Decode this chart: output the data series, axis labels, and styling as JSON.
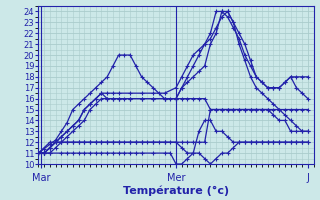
{
  "title": "Température (°c)",
  "background_color": "#cce8e8",
  "grid_color": "#aacccc",
  "line_color": "#2222aa",
  "axis_color": "#2222aa",
  "xlim": [
    0,
    48
  ],
  "ylim": [
    10,
    24.5
  ],
  "yticks": [
    10,
    11,
    12,
    13,
    14,
    15,
    16,
    17,
    18,
    19,
    20,
    21,
    22,
    23,
    24
  ],
  "xtick_positions": [
    0.5,
    24,
    47
  ],
  "xtick_labels": [
    "Mar",
    "Mer",
    "J"
  ],
  "series": [
    {
      "x": [
        0,
        1,
        2,
        3,
        4,
        5,
        6,
        7,
        8,
        9,
        10,
        11,
        12,
        13,
        14,
        15,
        16,
        17,
        18,
        19,
        20,
        21,
        22,
        23,
        24,
        25,
        26,
        27,
        28,
        29,
        30,
        31,
        32,
        33,
        34,
        35,
        36,
        37,
        38,
        39,
        40,
        41,
        42,
        43,
        44,
        45,
        46,
        47
      ],
      "y": [
        11,
        11.4,
        11.8,
        12.2,
        13,
        13.8,
        15,
        15.5,
        16,
        16.5,
        17,
        17.5,
        18,
        19,
        20,
        20,
        20,
        19,
        18,
        17.5,
        17,
        16.5,
        16,
        16,
        16,
        16,
        16,
        16,
        16,
        16,
        15,
        15,
        15,
        15,
        15,
        15,
        15,
        15,
        15,
        15,
        15,
        15,
        15,
        15,
        15,
        15,
        15,
        15
      ]
    },
    {
      "x": [
        0,
        1,
        2,
        3,
        4,
        5,
        6,
        7,
        8,
        9,
        10,
        11,
        12,
        13,
        14,
        15,
        16,
        17,
        18,
        19,
        20,
        21,
        22,
        23,
        24,
        25,
        26,
        27,
        28,
        29,
        30,
        31,
        32,
        33,
        34,
        35,
        36,
        37,
        38,
        39,
        40,
        41,
        42,
        43,
        44,
        45,
        46,
        47
      ],
      "y": [
        11,
        11,
        11.5,
        12,
        12,
        12,
        12,
        12,
        12,
        12,
        12,
        12,
        12,
        12,
        12,
        12,
        12,
        12,
        12,
        12,
        12,
        12,
        12,
        12,
        12,
        11.5,
        11,
        11,
        11,
        10.5,
        10,
        10.5,
        11,
        11,
        11.5,
        12,
        12,
        12,
        12,
        12,
        12,
        12,
        12,
        12,
        12,
        12,
        12,
        12
      ]
    },
    {
      "x": [
        0,
        1,
        2,
        4,
        5,
        6,
        7,
        8,
        9,
        10,
        11,
        12,
        13,
        14,
        15,
        16,
        17,
        18,
        20,
        22,
        23,
        24,
        25,
        26,
        27,
        28,
        29,
        30,
        31,
        32,
        33,
        34,
        35,
        36,
        37,
        38,
        39,
        40,
        41,
        42,
        43,
        44,
        45,
        46,
        47
      ],
      "y": [
        11,
        11,
        11,
        11,
        11,
        11,
        11,
        11,
        11,
        11,
        11,
        11,
        11,
        11,
        11,
        11,
        11,
        11,
        11,
        11,
        11,
        10,
        10,
        10.5,
        11,
        13,
        14,
        14,
        13,
        13,
        12.5,
        12,
        12,
        12,
        12,
        12,
        12,
        12,
        12,
        12,
        12,
        12,
        12,
        12,
        12
      ]
    },
    {
      "x": [
        0,
        2,
        4,
        5,
        6,
        7,
        8,
        9,
        10,
        11,
        12,
        13,
        14,
        16,
        17,
        18,
        20,
        22,
        24,
        25,
        26,
        27,
        28,
        29,
        30,
        31,
        32,
        33,
        34,
        35,
        36,
        37,
        38,
        39,
        40,
        41,
        42,
        43,
        44,
        45,
        46,
        47
      ],
      "y": [
        11,
        12,
        12,
        12,
        12,
        12,
        12,
        12,
        12,
        12,
        12,
        12,
        12,
        12,
        12,
        12,
        12,
        12,
        12,
        12,
        12,
        12,
        12,
        12,
        15,
        15,
        15,
        15,
        15,
        15,
        15,
        15,
        15,
        15,
        15,
        14.5,
        14,
        14,
        13,
        13,
        13,
        13
      ]
    },
    {
      "x": [
        0,
        1,
        2,
        3,
        4,
        5,
        6,
        7,
        8,
        9,
        10,
        11,
        12,
        13,
        14,
        15,
        16,
        18,
        20,
        22,
        24,
        25,
        26,
        27,
        28,
        29,
        30,
        31,
        32,
        33,
        34,
        35,
        36,
        37,
        38,
        39,
        40,
        41,
        42,
        43,
        44,
        45,
        46,
        47
      ],
      "y": [
        11,
        11,
        11.5,
        12,
        12.5,
        13,
        13.5,
        14,
        15,
        15.5,
        16,
        16.5,
        16,
        16,
        16,
        16,
        16,
        16,
        16,
        16,
        16,
        17,
        17.5,
        18,
        18.5,
        19,
        21,
        22,
        24,
        24,
        23,
        22,
        21,
        19.5,
        18,
        17.5,
        17,
        17,
        17,
        17.5,
        18,
        18,
        18,
        18
      ]
    },
    {
      "x": [
        0,
        1,
        2,
        3,
        4,
        5,
        6,
        7,
        8,
        9,
        10,
        11,
        12,
        13,
        14,
        16,
        18,
        20,
        22,
        24,
        25,
        26,
        27,
        28,
        29,
        30,
        31,
        32,
        33,
        34,
        35,
        36,
        37,
        38,
        39,
        40,
        41,
        42,
        43,
        44,
        45,
        46,
        47
      ],
      "y": [
        11,
        11,
        11.5,
        12,
        12.5,
        13,
        13.5,
        14,
        15,
        15.5,
        16,
        16.5,
        16.5,
        16.5,
        16.5,
        16.5,
        16.5,
        16.5,
        16.5,
        17,
        18,
        19,
        20,
        20.5,
        21,
        22,
        24,
        24,
        23.5,
        22.5,
        21.5,
        20,
        19,
        18,
        17.5,
        17,
        17,
        17,
        17.5,
        18,
        17,
        16.5,
        16
      ]
    },
    {
      "x": [
        0,
        1,
        2,
        3,
        4,
        5,
        6,
        7,
        8,
        9,
        10,
        11,
        12,
        13,
        14,
        16,
        18,
        20,
        22,
        24,
        25,
        26,
        27,
        28,
        29,
        30,
        31,
        32,
        33,
        34,
        35,
        36,
        37,
        38,
        39,
        40,
        41,
        42,
        43,
        44,
        45,
        46,
        47
      ],
      "y": [
        11,
        11,
        11,
        11.5,
        12,
        12.5,
        13,
        13.5,
        14,
        15,
        15.5,
        16,
        16,
        16,
        16,
        16,
        16,
        16,
        16,
        16,
        17,
        18,
        19,
        20,
        21,
        21.5,
        22.5,
        23.5,
        24,
        23,
        21,
        19.5,
        18,
        17,
        16.5,
        16,
        15.5,
        15,
        14.5,
        14,
        13.5,
        13,
        13
      ]
    }
  ]
}
